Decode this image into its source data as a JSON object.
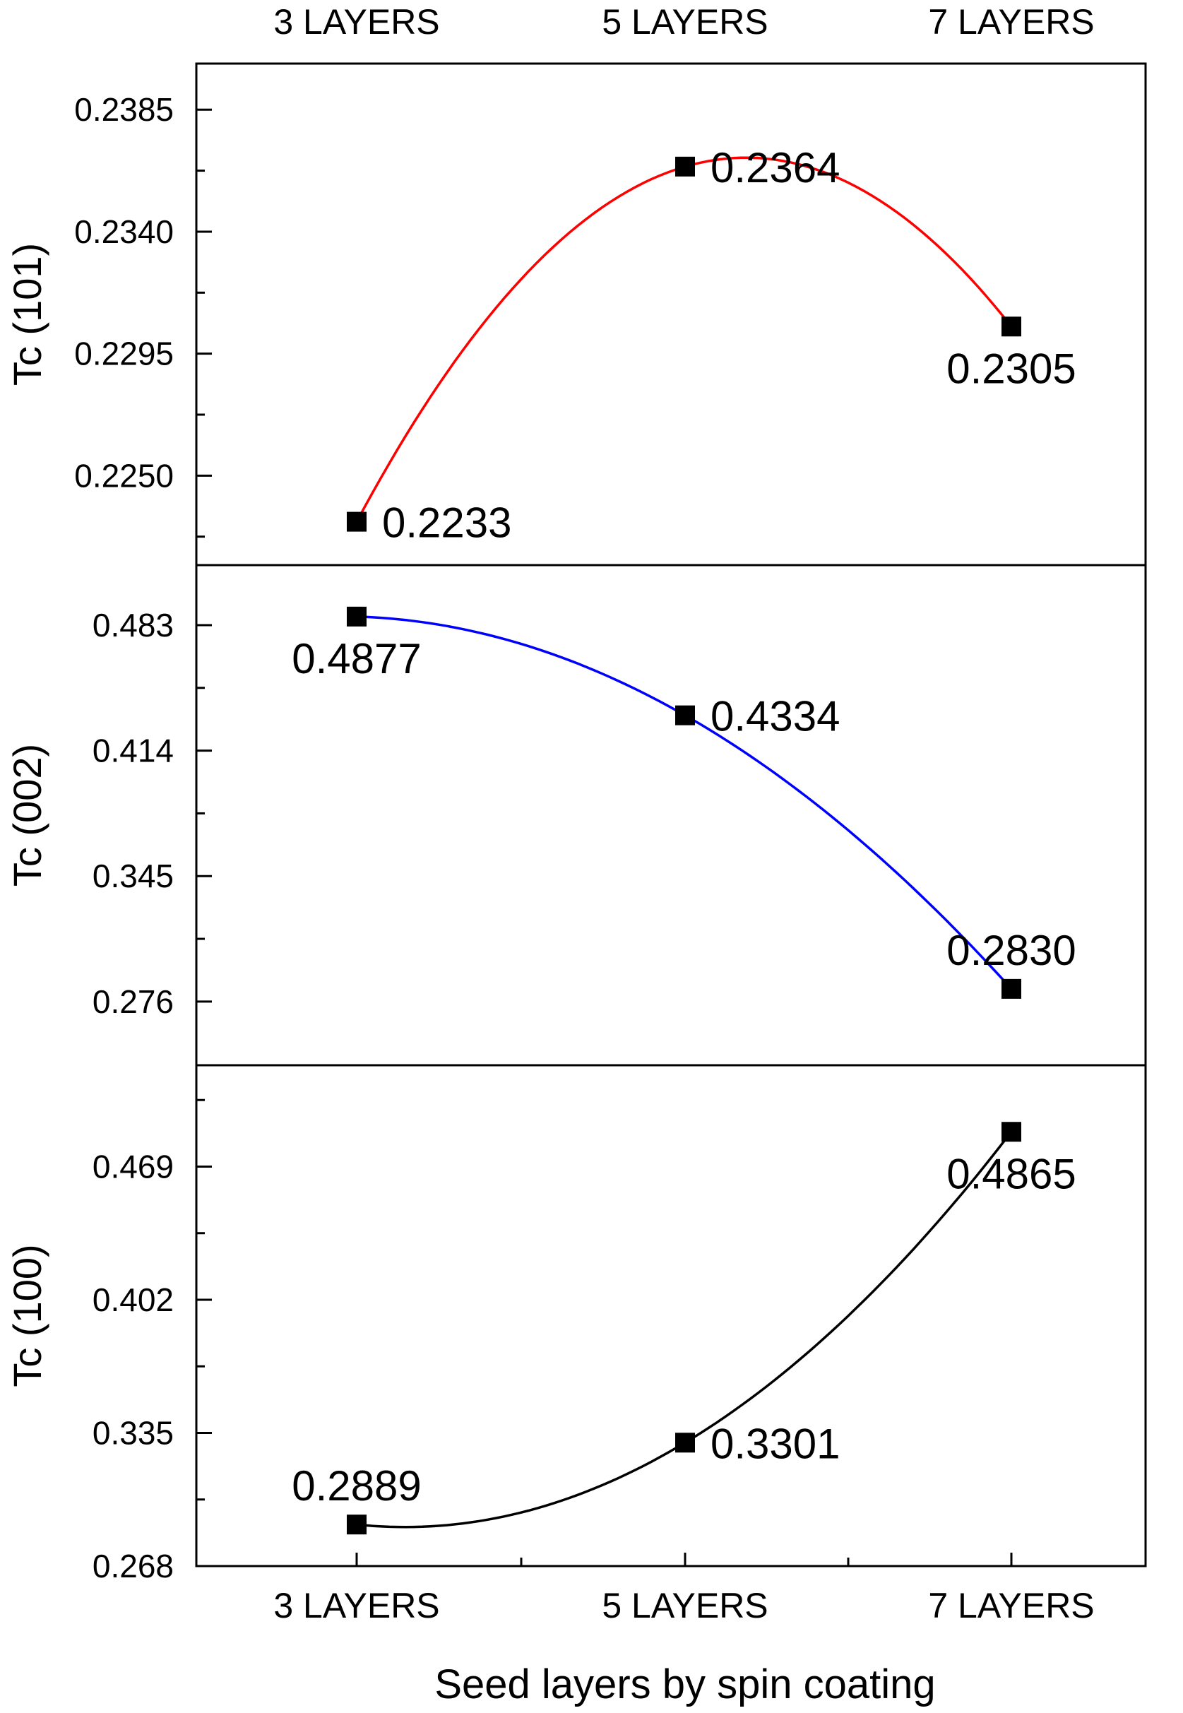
{
  "chart_data": {
    "type": "line",
    "xlabel": "Seed layers by spin coating",
    "categories": [
      "3 LAYERS",
      "5 LAYERS",
      "7 LAYERS"
    ],
    "colors": {
      "frame": "#000000",
      "marker": "#000000"
    },
    "panels": [
      {
        "ylabel": "Tc (101)",
        "ylim": [
          0.2217,
          0.2402
        ],
        "yticks": [
          "0.2250",
          "0.2295",
          "0.2340",
          "0.2385"
        ],
        "fit_color": "#ff0000",
        "values": [
          0.2233,
          0.2364,
          0.2305
        ],
        "value_labels": [
          "0.2233",
          "0.2364",
          "0.2305"
        ],
        "label_placement": [
          "right",
          "right",
          "below"
        ]
      },
      {
        "ylabel": "Tc (002)",
        "ylim": [
          0.241,
          0.516
        ],
        "yticks": [
          "0.276",
          "0.345",
          "0.414",
          "0.483"
        ],
        "fit_color": "#0000ff",
        "values": [
          0.4877,
          0.4334,
          0.283
        ],
        "value_labels": [
          "0.4877",
          "0.4334",
          "0.2830"
        ],
        "label_placement": [
          "below",
          "right",
          "above"
        ]
      },
      {
        "ylabel": "Tc (100)",
        "ylim": [
          0.268,
          0.52
        ],
        "yticks": [
          "0.268",
          "0.335",
          "0.402",
          "0.469"
        ],
        "fit_color": "#000000",
        "values": [
          0.2889,
          0.3301,
          0.4865
        ],
        "value_labels": [
          "0.2889",
          "0.3301",
          "0.4865"
        ],
        "label_placement": [
          "above",
          "right",
          "below"
        ]
      }
    ]
  }
}
